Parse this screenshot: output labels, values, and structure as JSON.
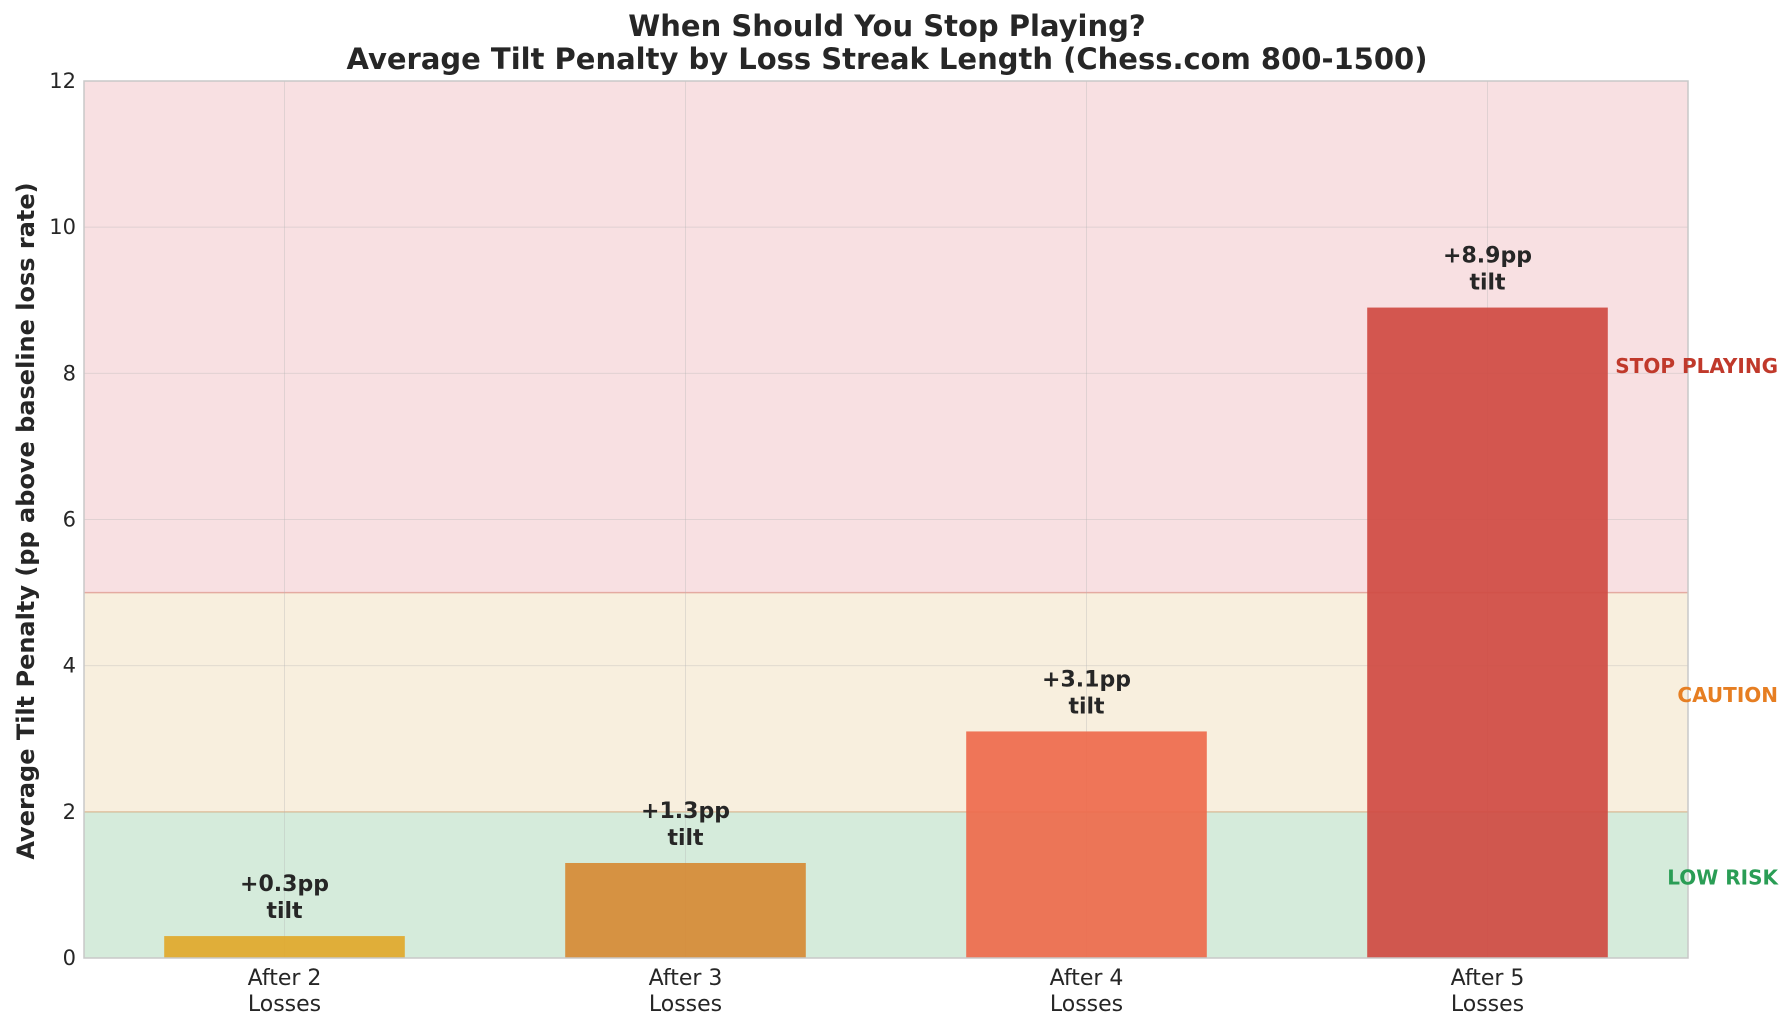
{
  "chart_data": {
    "type": "bar",
    "title": "When Should You Stop Playing?",
    "subtitle": "Average Tilt Penalty by Loss Streak Length (Chess.com 800-1500)",
    "ylabel": "Average Tilt Penalty (pp above baseline loss rate)",
    "xlabel": "",
    "ylim": [
      0,
      12
    ],
    "yticks": [
      0,
      2,
      4,
      6,
      8,
      10,
      12
    ],
    "grid": true,
    "categories": [
      {
        "line1": "After 2",
        "line2": "Losses"
      },
      {
        "line1": "After 3",
        "line2": "Losses"
      },
      {
        "line1": "After 4",
        "line2": "Losses"
      },
      {
        "line1": "After 5",
        "line2": "Losses"
      }
    ],
    "values": [
      0.3,
      1.3,
      3.1,
      8.9
    ],
    "bar_colors": [
      "#e1a82b",
      "#d68a35",
      "#ee6a4c",
      "#cf4a42"
    ],
    "data_labels": [
      {
        "line1": "+0.3pp",
        "line2": "tilt"
      },
      {
        "line1": "+1.3pp",
        "line2": "tilt"
      },
      {
        "line1": "+3.1pp",
        "line2": "tilt"
      },
      {
        "line1": "+8.9pp",
        "line2": "tilt"
      }
    ],
    "zones": [
      {
        "label": "LOW RISK",
        "from": 0,
        "to": 2,
        "color": "#2a9d55",
        "fill": "#bfe0c8",
        "label_y": 1.1
      },
      {
        "label": "CAUTION",
        "from": 2,
        "to": 5,
        "color": "#e67e22",
        "fill": "#f5e6cc",
        "label_y": 3.6
      },
      {
        "label": "STOP PLAYING",
        "from": 5,
        "to": 12,
        "color": "#c0392b",
        "fill": "#f4cfd2",
        "label_y": 8.1
      }
    ]
  }
}
